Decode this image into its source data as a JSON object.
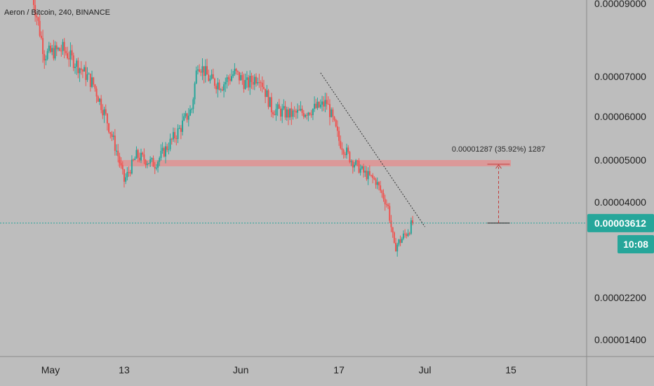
{
  "chart_title": "Aeron / Bitcoin, 240, BINANCE",
  "colors": {
    "background": "#bdbdbd",
    "up_candle": "#26a69a",
    "down_candle": "#ef5350",
    "zone": "#e88a8a",
    "current_price": "#26a69a",
    "trendline": "#333333"
  },
  "chart_data": {
    "type": "candlestick",
    "title": "Aeron / Bitcoin, 240, BINANCE",
    "x_ticks": [
      "May",
      "13",
      "Jun",
      "17",
      "Jul",
      "15"
    ],
    "y_ticks": [
      "0.00009000",
      "0.00007000",
      "0.00006000",
      "0.00005000",
      "0.00004000",
      "0.00002200",
      "0.00001400"
    ],
    "ylim": [
      1.2e-05,
      9.6e-05
    ],
    "price_path": [
      [
        "Apr 28",
        9.3e-05
      ],
      [
        "Apr 30",
        7.6e-05
      ],
      [
        "May 3",
        7.75e-05
      ],
      [
        "May 6",
        7.2e-05
      ],
      [
        "May 8",
        6.8e-05
      ],
      [
        "May 10",
        6e-05
      ],
      [
        "May 12",
        5.1e-05
      ],
      [
        "May 13",
        4.5e-05
      ],
      [
        "May 15",
        5.1e-05
      ],
      [
        "May 18",
        4.9e-05
      ],
      [
        "May 20",
        5.3e-05
      ],
      [
        "May 22",
        5.7e-05
      ],
      [
        "May 24",
        6.2e-05
      ],
      [
        "May 25",
        7.4e-05
      ],
      [
        "May 27",
        6.9e-05
      ],
      [
        "May 29",
        6.8e-05
      ],
      [
        "May 31",
        7.1e-05
      ],
      [
        "Jun 2",
        6.8e-05
      ],
      [
        "Jun 4",
        7.05e-05
      ],
      [
        "Jun 6",
        6.2e-05
      ],
      [
        "Jun 9",
        6.05e-05
      ],
      [
        "Jun 11",
        6.1e-05
      ],
      [
        "Jun 14",
        6.25e-05
      ],
      [
        "Jun 15",
        6.35e-05
      ],
      [
        "Jun 17",
        5.45e-05
      ],
      [
        "Jun 19",
        5e-05
      ],
      [
        "Jun 21",
        4.7e-05
      ],
      [
        "Jun 23",
        4.5e-05
      ],
      [
        "Jun 25",
        3.9e-05
      ],
      [
        "Jun 26",
        3.2e-05
      ],
      [
        "Jun 28",
        3.45e-05
      ],
      [
        "Jun 29",
        3.61e-05
      ]
    ],
    "support_zone": {
      "from": "May 12",
      "to": "Jul 15",
      "low": 4.85e-05,
      "high": 5e-05
    },
    "trendline": {
      "start": [
        "Jun 14",
        7.1e-05
      ],
      "end": [
        "Jul 1",
        3.55e-05
      ]
    },
    "current_price": 3.612e-05,
    "current_price_label": "0.00003612",
    "time_to_close": "10:08",
    "measure": {
      "date": "Jul 13",
      "from_price": 3.612e-05,
      "to_price": 4.899e-05,
      "label": "0.00001287 (35.92%) 1287"
    }
  }
}
